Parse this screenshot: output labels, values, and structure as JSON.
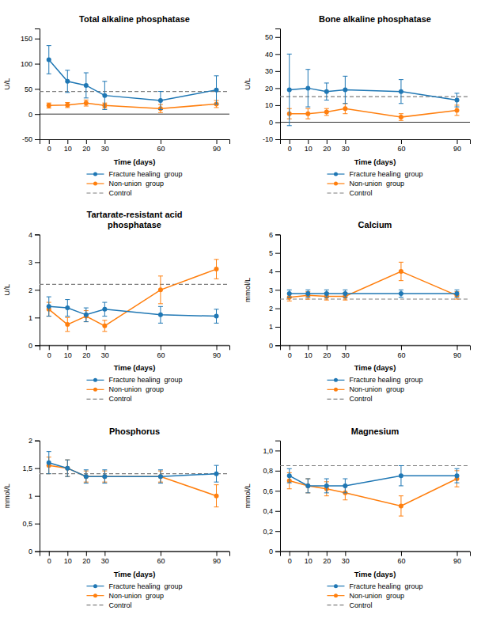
{
  "chart_data": [
    {
      "type": "line",
      "title": "Total alkaline phosphatase",
      "xlabel": "Time (days)",
      "ylabel": "U/L",
      "x": [
        0,
        10,
        20,
        30,
        60,
        90
      ],
      "xlim": [
        -5,
        97
      ],
      "xticks": [
        0,
        10,
        20,
        30,
        60,
        90
      ],
      "ylim": [
        -50,
        170
      ],
      "yticks": [
        -50,
        0,
        50,
        100,
        150
      ],
      "zero_line": 0,
      "control": {
        "name": "Control",
        "value": 45,
        "line_style": "dashed"
      },
      "series": [
        {
          "name": "Fracture healing  group",
          "marker": "circle",
          "values": [
            108,
            65,
            57,
            37,
            27,
            48
          ],
          "errors": [
            28,
            22,
            25,
            28,
            18,
            28
          ]
        },
        {
          "name": "Non-union  group",
          "marker": "circle",
          "values": [
            17,
            18,
            22,
            17,
            11,
            20
          ],
          "errors": [
            5,
            5,
            6,
            5,
            8,
            7
          ]
        }
      ],
      "legend": "bottom",
      "grid": false
    },
    {
      "type": "line",
      "title": "Bone alkaline phosphatase",
      "xlabel": "Time (days)",
      "ylabel": "U/L",
      "x": [
        0,
        10,
        20,
        30,
        60,
        90
      ],
      "xlim": [
        -5,
        97
      ],
      "xticks": [
        0,
        10,
        20,
        30,
        60,
        90
      ],
      "ylim": [
        -10,
        55
      ],
      "yticks": [
        -10,
        0,
        10,
        20,
        30,
        40,
        50
      ],
      "zero_line": 0,
      "control": {
        "name": "Control",
        "value": 15,
        "line_style": "dashed"
      },
      "series": [
        {
          "name": "Fracture healing  group",
          "marker": "circle",
          "values": [
            19,
            20,
            18,
            19,
            18,
            13
          ],
          "errors": [
            21,
            11,
            5,
            8,
            7,
            4
          ]
        },
        {
          "name": "Non-union  group",
          "marker": "circle",
          "values": [
            5,
            5,
            6,
            8,
            3,
            7
          ],
          "errors": [
            3,
            3,
            2,
            3,
            2,
            3
          ]
        }
      ],
      "legend": "bottom",
      "grid": false
    },
    {
      "type": "line",
      "title": "Tartarate-resistant acid\nphosphatase",
      "xlabel": "Time (days)",
      "ylabel": "U/L",
      "x": [
        0,
        10,
        20,
        30,
        60,
        90
      ],
      "xlim": [
        -5,
        97
      ],
      "xticks": [
        0,
        10,
        20,
        30,
        60,
        90
      ],
      "ylim": [
        0,
        4
      ],
      "yticks": [
        0,
        1,
        2,
        3,
        4
      ],
      "zero_line": 0,
      "control": {
        "name": "Control",
        "value": 2.2,
        "line_style": "dashed"
      },
      "series": [
        {
          "name": "Fracture healing  group",
          "marker": "circle",
          "values": [
            1.4,
            1.35,
            1.1,
            1.3,
            1.1,
            1.05
          ],
          "errors": [
            0.35,
            0.3,
            0.25,
            0.25,
            0.3,
            0.25
          ]
        },
        {
          "name": "Non-union  group",
          "marker": "circle",
          "values": [
            1.3,
            0.75,
            1.05,
            0.7,
            2.0,
            2.75
          ],
          "errors": [
            0.25,
            0.25,
            0.2,
            0.2,
            0.5,
            0.35
          ]
        }
      ],
      "legend": "bottom",
      "grid": false
    },
    {
      "type": "line",
      "title": "Calcium",
      "xlabel": "Time (days)",
      "ylabel": "mmol/L",
      "x": [
        0,
        10,
        20,
        30,
        60,
        90
      ],
      "xlim": [
        -5,
        97
      ],
      "xticks": [
        0,
        10,
        20,
        30,
        60,
        90
      ],
      "ylim": [
        0,
        6
      ],
      "yticks": [
        0,
        1,
        2,
        3,
        4,
        5,
        6
      ],
      "zero_line": 0,
      "control": {
        "name": "Control",
        "value": 2.5,
        "line_style": "dashed"
      },
      "series": [
        {
          "name": "Fracture healing  group",
          "marker": "circle",
          "values": [
            2.8,
            2.8,
            2.8,
            2.8,
            2.8,
            2.8
          ],
          "errors": [
            0.2,
            0.2,
            0.2,
            0.2,
            0.2,
            0.2
          ]
        },
        {
          "name": "Non-union  group",
          "marker": "circle",
          "values": [
            2.6,
            2.7,
            2.65,
            2.65,
            4.0,
            2.7
          ],
          "errors": [
            0.2,
            0.2,
            0.2,
            0.2,
            0.5,
            0.2
          ]
        }
      ],
      "legend": "bottom",
      "grid": false
    },
    {
      "type": "line",
      "title": "Phosphorus",
      "xlabel": "Time (days)",
      "ylabel": "mmol/L",
      "x": [
        0,
        10,
        20,
        30,
        60,
        90
      ],
      "xlim": [
        -5,
        97
      ],
      "xticks": [
        0,
        10,
        20,
        30,
        60,
        90
      ],
      "ylim": [
        0,
        2
      ],
      "yticks": [
        0,
        {
          "value": 0.5,
          "label": "0,5"
        },
        1,
        {
          "value": 1.5,
          "label": "1,5"
        },
        2
      ],
      "zero_line": 0,
      "control": {
        "name": "Control",
        "value": 1.4,
        "line_style": "dashed"
      },
      "series": [
        {
          "name": "Fracture healing  group",
          "marker": "circle",
          "values": [
            1.6,
            1.5,
            1.35,
            1.35,
            1.35,
            1.4
          ],
          "errors": [
            0.2,
            0.15,
            0.12,
            0.12,
            0.12,
            0.15
          ]
        },
        {
          "name": "Non-union  group",
          "marker": "circle",
          "values": [
            1.55,
            1.5,
            1.35,
            1.35,
            1.35,
            1.0
          ],
          "errors": [
            0.15,
            0.15,
            0.1,
            0.1,
            0.1,
            0.2
          ]
        }
      ],
      "legend": "bottom",
      "grid": false
    },
    {
      "type": "line",
      "title": "Magnesium",
      "xlabel": "Time (days)",
      "ylabel": "mmol/L",
      "x": [
        0,
        10,
        20,
        30,
        60,
        90
      ],
      "xlim": [
        -5,
        97
      ],
      "xticks": [
        0,
        10,
        20,
        30,
        60,
        90
      ],
      "ylim": [
        0,
        1.1
      ],
      "yticks": [
        0,
        {
          "value": 0.2,
          "label": "0,2"
        },
        {
          "value": 0.4,
          "label": "0,4"
        },
        {
          "value": 0.6,
          "label": "0,6"
        },
        {
          "value": 0.8,
          "label": "0,8"
        },
        {
          "value": 1.0,
          "label": "1,0"
        }
      ],
      "zero_line": 0,
      "control": {
        "name": "Control",
        "value": 0.85,
        "line_style": "dashed"
      },
      "series": [
        {
          "name": "Fracture healing  group",
          "marker": "circle",
          "values": [
            0.75,
            0.65,
            0.65,
            0.65,
            0.75,
            0.75
          ],
          "errors": [
            0.07,
            0.07,
            0.07,
            0.07,
            0.1,
            0.07
          ]
        },
        {
          "name": "Non-union  group",
          "marker": "circle",
          "values": [
            0.7,
            0.65,
            0.62,
            0.58,
            0.45,
            0.72
          ],
          "errors": [
            0.08,
            0.07,
            0.07,
            0.07,
            0.1,
            0.08
          ]
        }
      ],
      "legend": "bottom",
      "grid": false
    }
  ]
}
